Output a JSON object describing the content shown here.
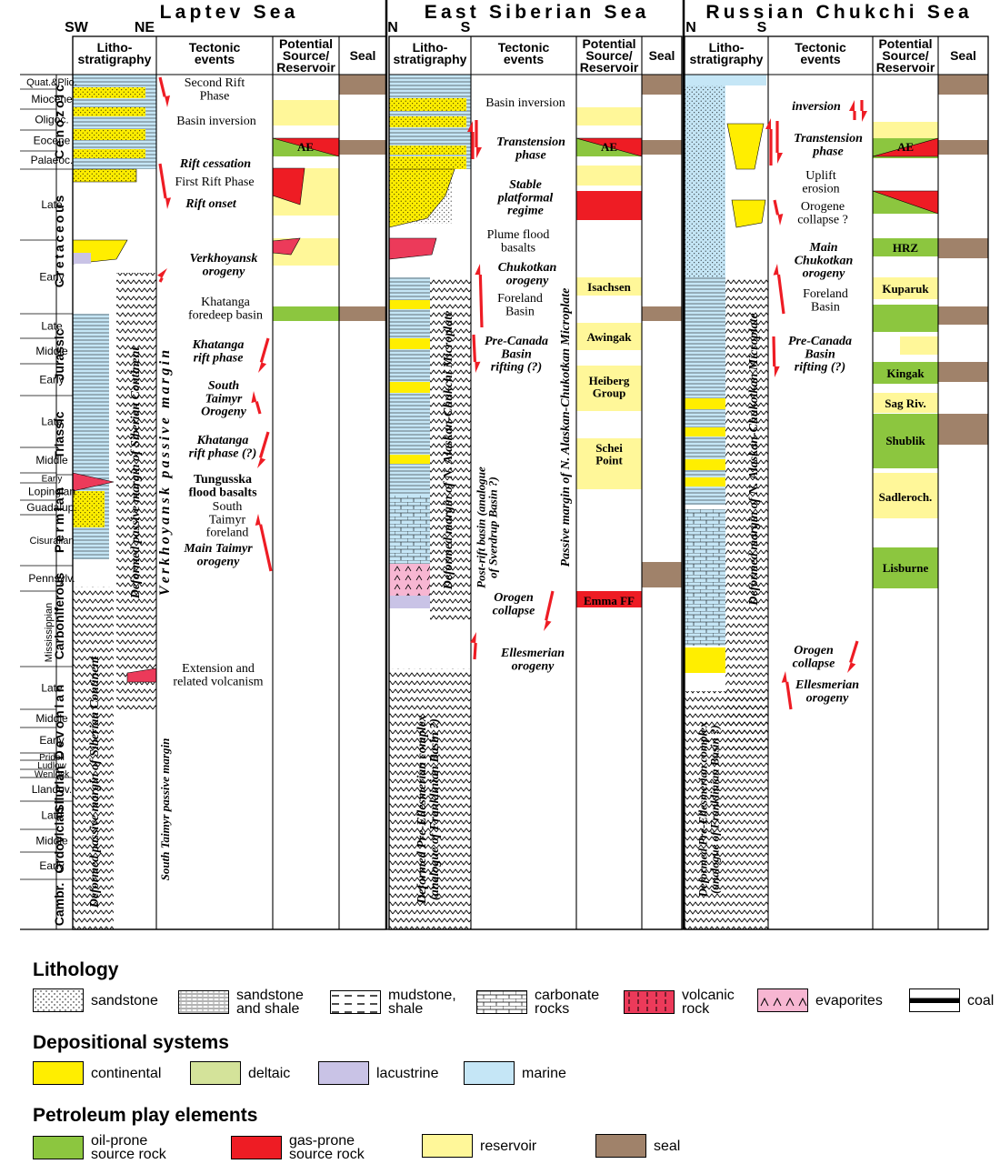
{
  "regions": [
    {
      "name": "Laptev Sea",
      "left_dir": "SW",
      "right_dir": "NE"
    },
    {
      "name": "East Siberian Sea",
      "left_dir": "N",
      "right_dir": "S"
    },
    {
      "name": "Russian Chukchi Sea",
      "left_dir": "N",
      "right_dir": "S"
    }
  ],
  "column_headers": {
    "litho": "Litho-\nstratigraphy",
    "tectonic": "Tectonic\nevents",
    "potential": "Potential\nSource/\nReservoir",
    "seal": "Seal"
  },
  "eras": [
    "Cenozoic",
    "Cretaceous",
    "Jurassic",
    "Triassic",
    "Permian",
    "Carboniferous",
    "Devonian",
    "Silurian",
    "Ordovician",
    "Cambr."
  ],
  "epochs": [
    "Quat.&Plio.",
    "Miocene",
    "Oligoc.",
    "Eocene",
    "Palaeoc.",
    "Late",
    "Early",
    "Late",
    "Middle",
    "Early",
    "Late",
    "Middle",
    "Early",
    "Lopingian",
    "Guadalup.",
    "Cisuralian",
    "Pennsylv.",
    "Mississippian",
    "Late",
    "Middle",
    "Early",
    "Pridoli",
    "Ludlow",
    "Wenlock",
    "Llandov.",
    "Late",
    "Middle",
    "Early"
  ],
  "laptev": {
    "tectonic": [
      "Second Rift\nPhase",
      "Basin inversion",
      "Rift cessation",
      "First Rift Phase",
      "Rift onset",
      "Verkhoyansk\norogeny",
      "Khatanga\nforedeep basin",
      "Khatanga\nrift phase",
      "South\nTaimyr\nOrogeny",
      "Khatanga\nrift phase (?)",
      "Tungusska\nflood basalts",
      "South\nTaimyr\nforeland",
      "Main Taimyr\norogeny",
      "Extension and\nrelated volcanism"
    ],
    "potential": [
      "AE"
    ],
    "vertical": [
      "Deformed passive margin of Siberian Continent",
      "Deformed passive margin of Siberian Continent",
      "Verkhoyansk passive margin",
      "South Taimyr passive margin"
    ]
  },
  "east_siberian": {
    "tectonic": [
      "Basin inversion",
      "Transtension\nphase",
      "Stable\nplatformal\nregime",
      "Plume flood\nbasalts",
      "Chukotkan\norogeny",
      "Foreland\nBasin",
      "Pre-Canada\nBasin\nrifting (?)",
      "Orogen\ncollapse",
      "Ellesmerian\norogeny"
    ],
    "potential": [
      "AE",
      "Isachsen",
      "Awingak",
      "Heiberg\nGroup",
      "Schei\nPoint",
      "Emma FF"
    ],
    "vertical": [
      "Deformed margin of N. Alaskan-Chukchi Microplate",
      "Post-rift basin (analogue\nof Sverdrup Basin ?)",
      "Passive margin of N. Alaskan-Chukotkan Microplate",
      "Deformed Pre-Ellesmerian complex\n(analogue of Franklinian Basin ?)"
    ]
  },
  "chukchi": {
    "tectonic": [
      "inversion",
      "Transtension\nphase",
      "Uplift\nerosion",
      "Orogene\ncollapse ?",
      "Main\nChukotkan\norogeny",
      "Foreland\nBasin",
      "Pre-Canada\nBasin\nrifting (?)",
      "Orogen\ncollapse",
      "Ellesmerian\norogeny"
    ],
    "potential": [
      "AE",
      "HRZ",
      "Kuparuk",
      "Kingak",
      "Sag Riv.",
      "Shublik",
      "Sadleroch.",
      "Lisburne"
    ],
    "vertical": [
      "Deformed margin of N. Alaskan-Chukotkan Microplate",
      "Deformed Pre-Ellesmerian complex\n(analogue of Franklinian Basin ?)"
    ]
  },
  "legend": {
    "lithology": {
      "title": "Lithology",
      "items": [
        "sandstone",
        "sandstone\nand shale",
        "mudstone,\nshale",
        "carbonate\nrocks",
        "volcanic\nrock",
        "evaporites",
        "coal"
      ]
    },
    "depositional": {
      "title": "Depositional systems",
      "items": [
        {
          "label": "continental",
          "color": "#ffee00"
        },
        {
          "label": "deltaic",
          "color": "#d4e39a"
        },
        {
          "label": "lacustrine",
          "color": "#c9c3e6"
        },
        {
          "label": "marine",
          "color": "#c5e6f6"
        }
      ]
    },
    "petroleum": {
      "title": "Petroleum play elements",
      "items": [
        {
          "label": "oil-prone\nsource rock",
          "color": "#8cc63f"
        },
        {
          "label": "gas-prone\nsource rock",
          "color": "#ee1c24"
        },
        {
          "label": "reservoir",
          "color": "#fff799"
        },
        {
          "label": "seal",
          "color": "#a0826a"
        }
      ]
    }
  }
}
